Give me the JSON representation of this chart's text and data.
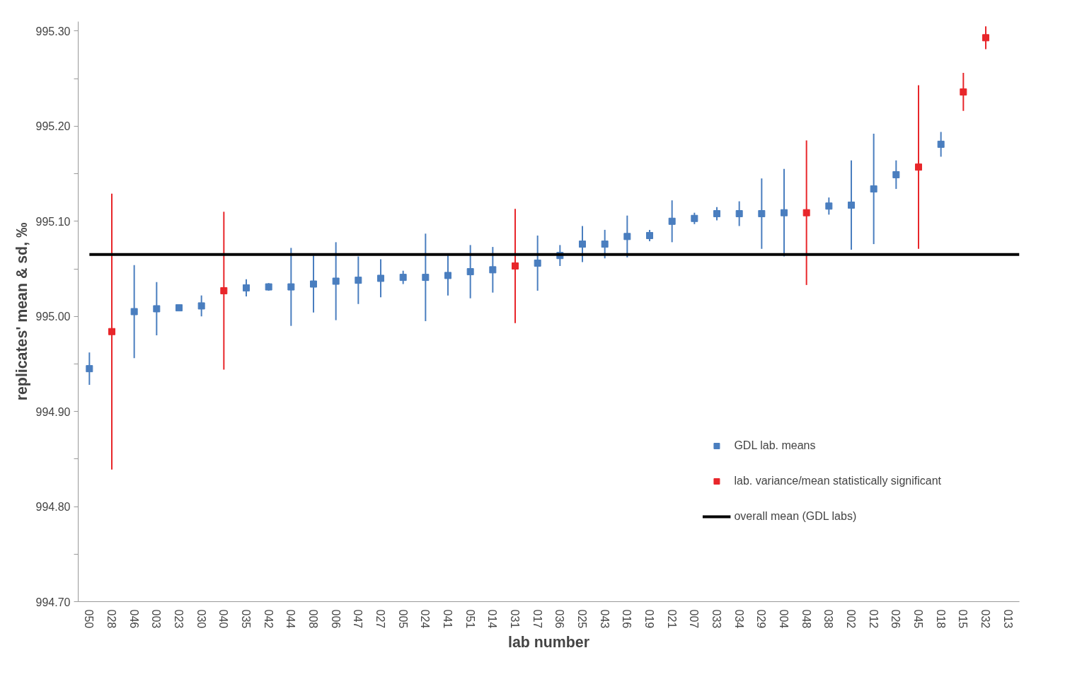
{
  "chart_data": {
    "type": "scatter",
    "xlabel": "lab number",
    "ylabel": "replicates' mean & sd, ‰",
    "categories": [
      "050",
      "028",
      "046",
      "003",
      "023",
      "030",
      "040",
      "035",
      "042",
      "044",
      "008",
      "006",
      "047",
      "027",
      "005",
      "024",
      "041",
      "051",
      "014",
      "031",
      "017",
      "036",
      "025",
      "043",
      "016",
      "019",
      "021",
      "007",
      "033",
      "034",
      "029",
      "004",
      "048",
      "038",
      "002",
      "012",
      "026",
      "045",
      "018",
      "015",
      "032",
      "013"
    ],
    "series": [
      {
        "name": "GDL lab. means",
        "color": "#4a7ebf",
        "values": [
          994.945,
          null,
          995.005,
          995.008,
          995.009,
          995.011,
          null,
          995.03,
          995.031,
          995.031,
          995.034,
          995.037,
          995.038,
          995.04,
          995.041,
          995.041,
          995.043,
          995.047,
          995.049,
          null,
          995.056,
          995.064,
          995.076,
          995.076,
          995.084,
          995.085,
          995.1,
          995.103,
          995.108,
          995.108,
          995.108,
          995.109,
          null,
          995.116,
          995.117,
          995.134,
          995.149,
          null,
          995.181,
          null,
          null,
          null
        ],
        "errors": [
          0.017,
          null,
          0.049,
          0.028,
          null,
          0.011,
          null,
          0.009,
          0.004,
          0.041,
          0.03,
          0.041,
          0.025,
          0.02,
          0.007,
          0.046,
          0.021,
          0.028,
          0.024,
          null,
          0.029,
          0.011,
          0.019,
          0.015,
          0.022,
          0.006,
          0.022,
          0.006,
          0.007,
          0.013,
          0.037,
          0.046,
          null,
          0.009,
          0.047,
          0.058,
          0.015,
          null,
          0.013,
          null,
          null,
          null
        ]
      },
      {
        "name": "lab. variance/mean statistically significant",
        "color": "#e8262a",
        "values": [
          null,
          994.984,
          null,
          null,
          null,
          null,
          995.027,
          null,
          null,
          null,
          null,
          null,
          null,
          null,
          null,
          null,
          null,
          null,
          null,
          995.053,
          null,
          null,
          null,
          null,
          null,
          null,
          null,
          null,
          null,
          null,
          null,
          null,
          995.109,
          null,
          null,
          null,
          null,
          995.157,
          null,
          995.236,
          995.293,
          null
        ],
        "errors": [
          null,
          0.145,
          null,
          null,
          null,
          null,
          0.083,
          null,
          null,
          null,
          null,
          null,
          null,
          null,
          null,
          null,
          null,
          null,
          null,
          0.06,
          null,
          null,
          null,
          null,
          null,
          null,
          null,
          null,
          null,
          null,
          null,
          null,
          0.076,
          null,
          null,
          null,
          null,
          0.086,
          null,
          0.02,
          0.012,
          null
        ]
      }
    ],
    "ref_lines": [
      {
        "axis": "y",
        "value": 995.065,
        "label": "overall mean (GDL labs)",
        "color": "#000000"
      }
    ],
    "ylim": [
      994.7,
      995.31
    ],
    "yticks": [
      {
        "value": 994.7,
        "label": "994.70"
      },
      {
        "value": 994.75,
        "label": null
      },
      {
        "value": 994.8,
        "label": "994.80"
      },
      {
        "value": 994.85,
        "label": null
      },
      {
        "value": 994.9,
        "label": "994.90"
      },
      {
        "value": 994.95,
        "label": null
      },
      {
        "value": 995.0,
        "label": "995.00"
      },
      {
        "value": 995.05,
        "label": null
      },
      {
        "value": 995.1,
        "label": "995.10"
      },
      {
        "value": 995.15,
        "label": null
      },
      {
        "value": 995.2,
        "label": "995.20"
      },
      {
        "value": 995.25,
        "label": null
      },
      {
        "value": 995.3,
        "label": "995.30"
      }
    ],
    "grid": false,
    "legend": "bottom right",
    "marker": "square"
  }
}
